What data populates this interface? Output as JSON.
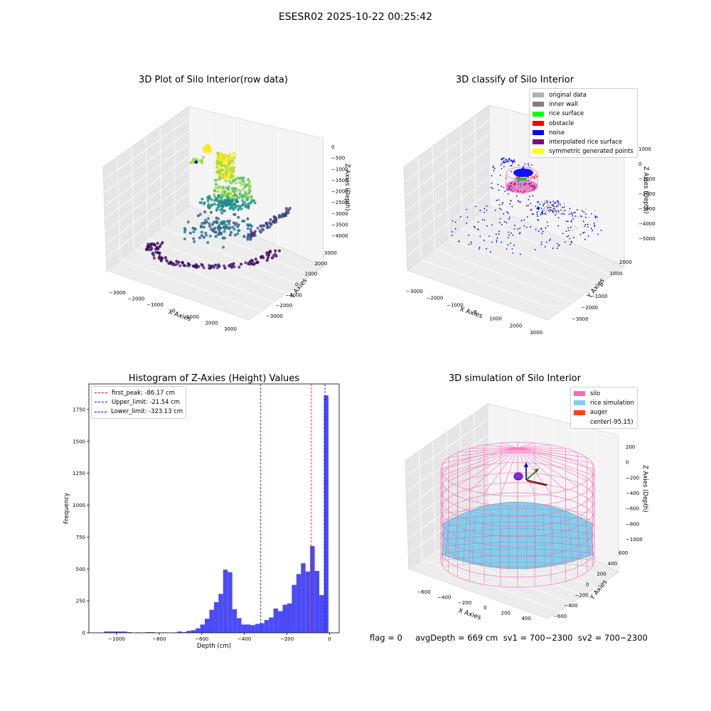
{
  "figure": {
    "title": "ESESR02 2025-10-22 00:25:42",
    "footer": "flag = 0     avgDepth = 669 cm  sv1 = 700~2300  sv2 = 700~2300"
  },
  "chart_data": [
    {
      "type": "scatter",
      "title": "3D Plot of Silo Interior(row data)",
      "xlabel": "X Axies",
      "ylabel": "Y Axies",
      "zlabel": "Z Axies (Depth)",
      "x_ticks": [
        "−3000",
        "−2000",
        "−1000",
        "0",
        "1000",
        "2000",
        "3000"
      ],
      "y_ticks": [
        "−3000",
        "−2000",
        "−1000",
        "0",
        "1000",
        "2000",
        "3000"
      ],
      "z_ticks": [
        "0",
        "−500",
        "−1000",
        "−1500",
        "−2000",
        "−2500",
        "−3000",
        "−3500",
        "−4000"
      ],
      "colormap": "viridis"
    },
    {
      "type": "scatter",
      "title": "3D classify of Silo Interior",
      "xlabel": "X Axies",
      "ylabel": "Y Axies",
      "zlabel": "Z Axies (Depth)",
      "x_ticks": [
        "−3000",
        "−2000",
        "−1000",
        "0",
        "1000",
        "2000",
        "3000"
      ],
      "y_ticks": [
        "−3000",
        "−2000",
        "−1000",
        "0",
        "1000",
        "2000"
      ],
      "z_ticks": [
        "1000",
        "0",
        "−1000",
        "−2000",
        "−3000",
        "−4000",
        "−5000"
      ],
      "legend": [
        {
          "label": "original data",
          "color": "#b2b2b2"
        },
        {
          "label": "inner wall",
          "color": "#808080"
        },
        {
          "label": "rice surface",
          "color": "#00ff00"
        },
        {
          "label": "obstacle",
          "color": "#ff0000"
        },
        {
          "label": "noise",
          "color": "#0000ff"
        },
        {
          "label": "interpolated rice surface",
          "color": "#800080"
        },
        {
          "label": "symmetric generated points",
          "color": "#ffff00"
        }
      ]
    },
    {
      "type": "bar",
      "title": "Histogram of Z-Axies (Height) Values",
      "xlabel": "Depth (cm)",
      "ylabel": "Frequency",
      "xlim": [
        -1130,
        45
      ],
      "ylim": [
        0,
        1950
      ],
      "x_ticks": [
        -1000,
        -800,
        -600,
        -400,
        -200,
        0
      ],
      "x_tick_labels": [
        "−1000",
        "−800",
        "−600",
        "−400",
        "−200",
        "0"
      ],
      "y_ticks": [
        0,
        250,
        500,
        750,
        1000,
        1250,
        1500,
        1750
      ],
      "y_tick_labels": [
        "0",
        "250",
        "500",
        "750",
        "1000",
        "1250",
        "1500",
        "1750"
      ],
      "bin_width": 21.5,
      "bins": [
        {
          "x": -1048,
          "v": 10
        },
        {
          "x": -1026.5,
          "v": 10
        },
        {
          "x": -1005,
          "v": 10
        },
        {
          "x": -983.5,
          "v": 10
        },
        {
          "x": -962,
          "v": 10
        },
        {
          "x": -940.5,
          "v": 5
        },
        {
          "x": -897.5,
          "v": 3
        },
        {
          "x": -854.5,
          "v": 5
        },
        {
          "x": -833,
          "v": 5
        },
        {
          "x": -790,
          "v": 3
        },
        {
          "x": -768.5,
          "v": 2
        },
        {
          "x": -725.5,
          "v": 3
        },
        {
          "x": -704,
          "v": 10
        },
        {
          "x": -682.5,
          "v": 5
        },
        {
          "x": -661,
          "v": 15
        },
        {
          "x": -639.5,
          "v": 20
        },
        {
          "x": -618,
          "v": 35
        },
        {
          "x": -596.5,
          "v": 65
        },
        {
          "x": -575,
          "v": 110
        },
        {
          "x": -553.5,
          "v": 180
        },
        {
          "x": -532,
          "v": 240
        },
        {
          "x": -510.5,
          "v": 305
        },
        {
          "x": -489,
          "v": 495
        },
        {
          "x": -467.5,
          "v": 475
        },
        {
          "x": -446,
          "v": 185
        },
        {
          "x": -424.5,
          "v": 115
        },
        {
          "x": -403,
          "v": 65
        },
        {
          "x": -381.5,
          "v": 65
        },
        {
          "x": -360,
          "v": 60
        },
        {
          "x": -338.5,
          "v": 70
        },
        {
          "x": -317,
          "v": 75
        },
        {
          "x": -295.5,
          "v": 100
        },
        {
          "x": -274,
          "v": 120
        },
        {
          "x": -252.5,
          "v": 190
        },
        {
          "x": -231,
          "v": 170
        },
        {
          "x": -209.5,
          "v": 220
        },
        {
          "x": -188,
          "v": 230
        },
        {
          "x": -166.5,
          "v": 375
        },
        {
          "x": -145,
          "v": 460
        },
        {
          "x": -123.5,
          "v": 545
        },
        {
          "x": -102,
          "v": 480
        },
        {
          "x": -80.5,
          "v": 680
        },
        {
          "x": -59,
          "v": 485
        },
        {
          "x": -37.5,
          "v": 295
        },
        {
          "x": -16,
          "v": 1860
        }
      ],
      "vlines": [
        {
          "label": "first_peak: -86.17 cm",
          "x": -86.17,
          "color": "#ff0000"
        },
        {
          "label": "Upper_limit: -21.54 cm",
          "x": -21.54,
          "color": "#0000ff"
        },
        {
          "label": "Lower_limit: -323.13 cm",
          "x": -323.13,
          "color": "#0000ff"
        }
      ],
      "bar_color": "#4b4bf5"
    },
    {
      "type": "other",
      "title": "3D simulation of Silo Interior",
      "xlabel": "X Axies",
      "ylabel": "Y Axies",
      "zlabel": "Z Axies (Depth)",
      "x_ticks": [
        "−600",
        "−400",
        "−200",
        "0",
        "200",
        "400"
      ],
      "y_ticks": [
        "−600",
        "−400",
        "−200",
        "0",
        "200",
        "400",
        "600"
      ],
      "z_ticks": [
        "200",
        "0",
        "−200",
        "−400",
        "−600",
        "−800",
        "−1000"
      ],
      "legend": [
        {
          "label": "silo",
          "color": "#ff69b4"
        },
        {
          "label": "rice simulation",
          "color": "#87ceeb"
        },
        {
          "label": "auger",
          "color": "#ff4500"
        },
        {
          "label": "center(-95,15)",
          "color": ""
        }
      ]
    }
  ]
}
